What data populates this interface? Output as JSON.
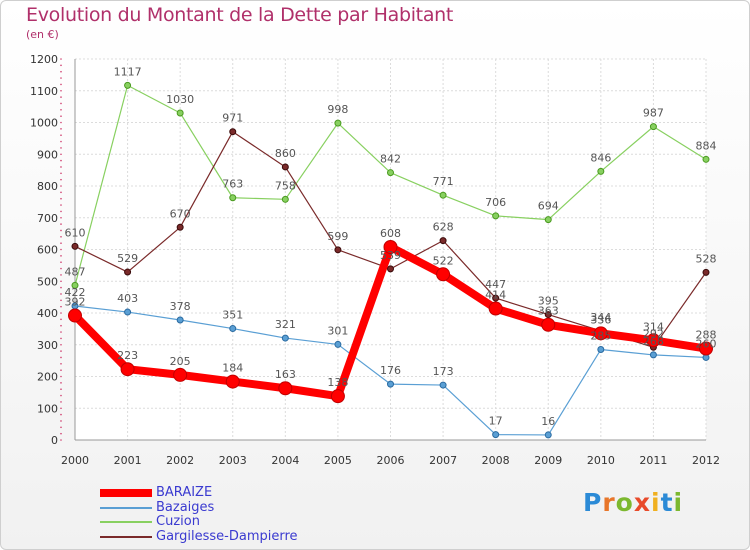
{
  "title": "Evolution du Montant de la Dette par Habitant",
  "subtitle": "(en €)",
  "logo": {
    "letters": [
      {
        "ch": "P",
        "color": "#2b8ad6"
      },
      {
        "ch": "r",
        "color": "#e8762a"
      },
      {
        "ch": "o",
        "color": "#7cb82f"
      },
      {
        "ch": "x",
        "color": "#e84a2a"
      },
      {
        "ch": "i",
        "color": "#f0b020"
      },
      {
        "ch": "t",
        "color": "#2b8ad6"
      },
      {
        "ch": "i",
        "color": "#7cb82f"
      }
    ]
  },
  "chart_data": {
    "type": "line",
    "x": [
      "2000",
      "2001",
      "2002",
      "2003",
      "2004",
      "2005",
      "2006",
      "2007",
      "2008",
      "2009",
      "2010",
      "2011",
      "2012"
    ],
    "ylim": [
      0,
      1200
    ],
    "yticks": [
      0,
      100,
      200,
      300,
      400,
      500,
      600,
      700,
      800,
      900,
      1000,
      1100,
      1200
    ],
    "grid": true,
    "legend_position": "bottom-left",
    "series": [
      {
        "name": "BARAIZE",
        "color": "#ff0000",
        "values": [
          392,
          223,
          205,
          184,
          163,
          138,
          608,
          522,
          414,
          363,
          336,
          314,
          288
        ],
        "labels": [
          "392",
          "223",
          "205",
          "184",
          "163",
          "138",
          "608",
          "522",
          "414",
          "363",
          "336",
          "314",
          "288"
        ]
      },
      {
        "name": "Bazaiges",
        "color": "#5a9fd4",
        "values": [
          422,
          403,
          378,
          351,
          321,
          301,
          176,
          173,
          17,
          16,
          285,
          268,
          260
        ],
        "labels": [
          "422",
          "403",
          "378",
          "351",
          "321",
          "301",
          "176",
          "173",
          "17",
          "16",
          "285",
          "268",
          "260"
        ]
      },
      {
        "name": "Cuzion",
        "color": "#88d060",
        "values": [
          487,
          1117,
          1030,
          763,
          758,
          998,
          842,
          771,
          706,
          694,
          846,
          987,
          884
        ],
        "labels": [
          "487",
          "1117",
          "1030",
          "763",
          "758",
          "998",
          "842",
          "771",
          "706",
          "694",
          "846",
          "987",
          "884"
        ]
      },
      {
        "name": "Gargilesse-Dampierre",
        "color": "#7a2a2a",
        "values": [
          610,
          529,
          670,
          971,
          860,
          599,
          539,
          628,
          447,
          395,
          344,
          292,
          528
        ],
        "labels": [
          "610",
          "529",
          "670",
          "971",
          "860",
          "599",
          "539",
          "628",
          "447",
          "395",
          "344",
          "292",
          "528"
        ]
      }
    ]
  }
}
